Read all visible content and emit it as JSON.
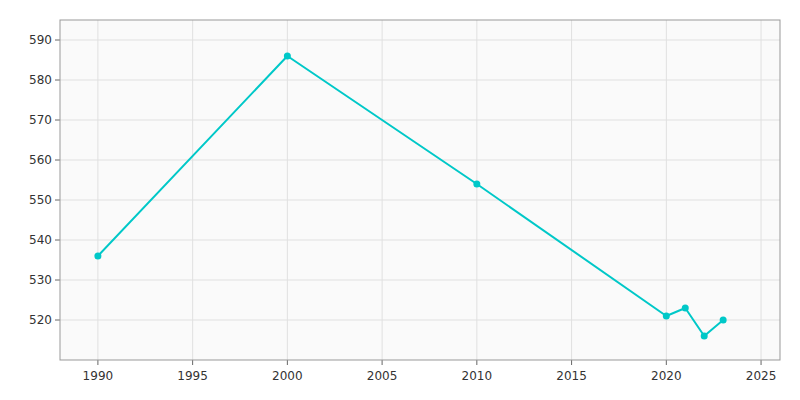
{
  "chart_data": {
    "type": "line",
    "x": [
      1990,
      2000,
      2010,
      2020,
      2021,
      2022,
      2023
    ],
    "values": [
      536,
      586,
      554,
      521,
      523,
      516,
      520
    ],
    "color": "#00C8C8",
    "marker": "circle",
    "xlim": [
      1988,
      2026
    ],
    "ylim": [
      510,
      595
    ],
    "xticks": [
      1990,
      1995,
      2000,
      2005,
      2010,
      2015,
      2020,
      2025
    ],
    "yticks": [
      520,
      530,
      540,
      550,
      560,
      570,
      580,
      590
    ],
    "grid": true
  }
}
